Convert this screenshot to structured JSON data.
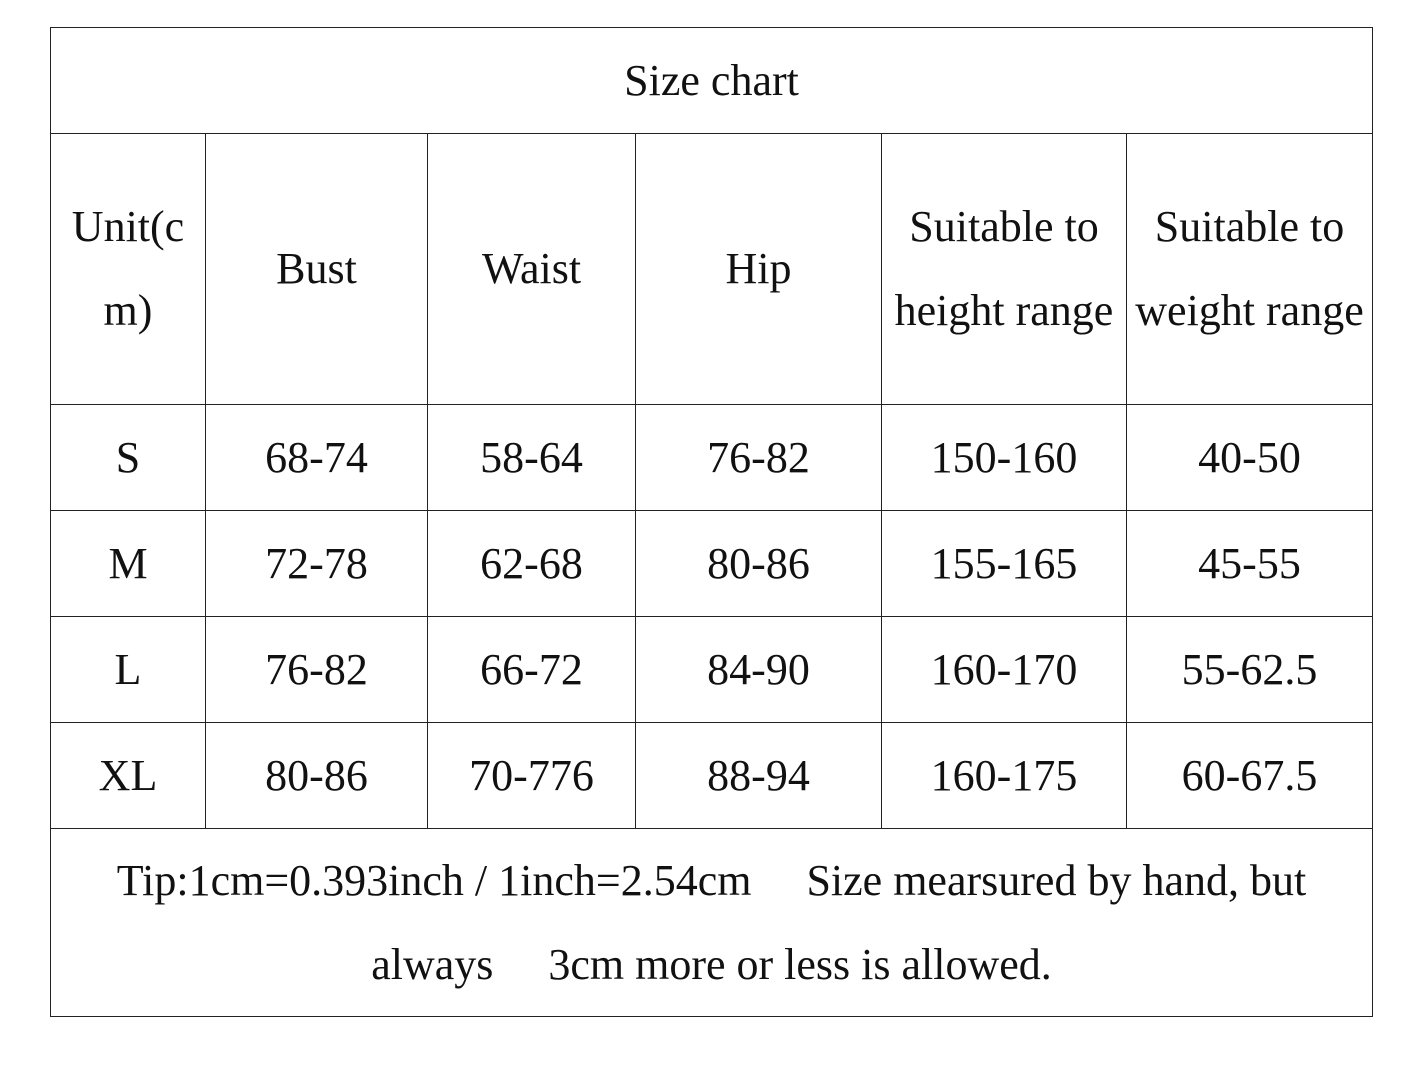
{
  "title": "Size chart",
  "table": {
    "columns": [
      "Unit(cm)",
      "Bust",
      "Waist",
      "Hip",
      "Suitable to height range",
      "Suitable to weight range"
    ],
    "rows": [
      [
        "S",
        "68-74",
        "58-64",
        "76-82",
        "150-160",
        "40-50"
      ],
      [
        "M",
        "72-78",
        "62-68",
        "80-86",
        "155-165",
        "45-55"
      ],
      [
        "L",
        "76-82",
        "66-72",
        "84-90",
        "160-170",
        "55-62.5"
      ],
      [
        "XL",
        "80-86",
        "70-776",
        "88-94",
        "160-175",
        "60-67.5"
      ]
    ]
  },
  "tip": "Tip:1cm=0.393inch / 1inch=2.54cm　 Size mearsured by hand, but always　 3cm more or less is allowed."
}
